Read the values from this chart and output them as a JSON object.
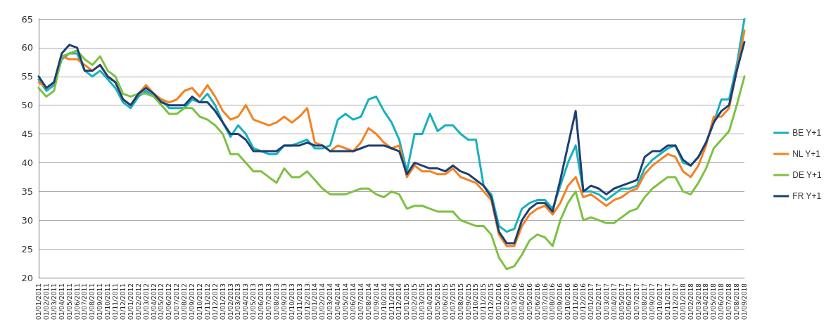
{
  "chart_data": {
    "type": "line",
    "categories": [
      "01/01/2011",
      "01/02/2011",
      "01/03/2011",
      "01/04/2011",
      "01/05/2011",
      "01/06/2011",
      "01/07/2011",
      "01/08/2011",
      "01/09/2011",
      "01/10/2011",
      "01/11/2011",
      "01/12/2011",
      "01/01/2012",
      "01/02/2012",
      "01/03/2012",
      "01/04/2012",
      "01/05/2012",
      "01/06/2012",
      "01/07/2012",
      "01/08/2012",
      "01/09/2012",
      "01/10/2012",
      "01/11/2012",
      "01/12/2012",
      "01/01/2013",
      "01/02/2013",
      "01/03/2013",
      "01/04/2013",
      "01/05/2013",
      "01/06/2013",
      "01/07/2013",
      "01/08/2013",
      "01/09/2013",
      "01/10/2013",
      "01/11/2013",
      "01/12/2013",
      "01/01/2014",
      "01/02/2014",
      "01/03/2014",
      "01/04/2014",
      "01/05/2014",
      "01/06/2014",
      "01/07/2014",
      "01/08/2014",
      "01/09/2014",
      "01/10/2014",
      "01/11/2014",
      "01/12/2014",
      "01/01/2015",
      "01/02/2015",
      "01/03/2015",
      "01/04/2015",
      "01/05/2015",
      "01/06/2015",
      "01/07/2015",
      "01/08/2015",
      "01/09/2015",
      "01/10/2015",
      "01/11/2015",
      "01/12/2015",
      "01/01/2016",
      "01/02/2016",
      "01/03/2016",
      "01/04/2016",
      "01/05/2016",
      "01/06/2016",
      "01/07/2016",
      "01/08/2016",
      "01/09/2016",
      "01/10/2016",
      "01/11/2016",
      "01/12/2016",
      "01/01/2017",
      "01/02/2017",
      "01/03/2017",
      "01/04/2017",
      "01/05/2017",
      "01/06/2017",
      "01/07/2017",
      "01/08/2017",
      "01/09/2017",
      "01/10/2017",
      "01/11/2017",
      "01/12/2017",
      "01/01/2018",
      "01/02/2018",
      "01/03/2018",
      "01/04/2018",
      "01/05/2018",
      "01/06/2018",
      "01/07/2018",
      "01/08/2018",
      "01/09/2018"
    ],
    "series": [
      {
        "name": "BE Y+1",
        "color": "#17b0c0",
        "values": [
          54.5,
          52.5,
          53.5,
          58,
          59,
          59,
          56,
          55,
          56,
          54.5,
          53,
          50.5,
          49.5,
          51.5,
          52.5,
          51.5,
          51,
          49.5,
          49.5,
          49.5,
          51,
          50.5,
          52,
          50,
          47,
          44.5,
          46.5,
          45,
          42.5,
          42,
          41.5,
          41.5,
          43,
          43,
          43.5,
          44,
          42.5,
          42.5,
          43,
          47.5,
          48.5,
          47.5,
          48,
          51,
          51.5,
          49,
          47,
          44,
          38.5,
          45,
          45,
          48.5,
          45.5,
          46.5,
          46.5,
          45,
          44,
          44,
          36,
          34.5,
          29,
          28,
          28.5,
          32,
          33,
          33.5,
          33.5,
          32,
          36,
          40,
          43,
          35,
          35,
          34.5,
          33.5,
          34.5,
          35.5,
          35.5,
          36,
          39,
          40.5,
          41.5,
          42.5,
          43,
          40,
          39.5,
          41,
          43.5,
          47,
          51,
          51,
          57,
          65
        ]
      },
      {
        "name": "NL Y+1",
        "color": "#f58220",
        "values": [
          54,
          53,
          54,
          58.5,
          58,
          58,
          57,
          56,
          57,
          55,
          54,
          51,
          50,
          52,
          53.5,
          52,
          51,
          50.5,
          51,
          52.5,
          53,
          51.5,
          53.5,
          51.5,
          49,
          47.5,
          48,
          50,
          47.5,
          47,
          46.5,
          47,
          48,
          47,
          48,
          49.5,
          43.5,
          43,
          42,
          43,
          42.5,
          42,
          43.5,
          46,
          45,
          43.5,
          42.5,
          43,
          37.5,
          39.5,
          38.5,
          38.5,
          38,
          38,
          39,
          37.5,
          37,
          36.5,
          35,
          33.5,
          27.5,
          25.5,
          25.5,
          29,
          31,
          32,
          32.5,
          31,
          33,
          36,
          37.5,
          34,
          34.5,
          33.5,
          32.5,
          33.5,
          34,
          35,
          35.5,
          38,
          39.5,
          40.5,
          41.5,
          41,
          38.5,
          37.5,
          39.5,
          43,
          48,
          48,
          49.5,
          56,
          63
        ]
      },
      {
        "name": "DE Y+1",
        "color": "#7dc142",
        "values": [
          53,
          51.5,
          52.5,
          58.5,
          59,
          59.5,
          58,
          57,
          58.5,
          56,
          55,
          52,
          51.5,
          52,
          52,
          51.5,
          50,
          48.5,
          48.5,
          49.5,
          49.5,
          48,
          47.5,
          46.5,
          45,
          41.5,
          41.5,
          40,
          38.5,
          38.5,
          37.5,
          36.5,
          39,
          37.5,
          37.5,
          38.5,
          37,
          35.5,
          34.5,
          34.5,
          34.5,
          35,
          35.5,
          35.5,
          34.5,
          34,
          35,
          34.5,
          32,
          32.5,
          32.5,
          32,
          31.5,
          31.5,
          31.5,
          30,
          29.5,
          29,
          29,
          27.5,
          23.5,
          21.5,
          22,
          24,
          26.5,
          27.5,
          27,
          25.5,
          30,
          33,
          35,
          30,
          30.5,
          30,
          29.5,
          29.5,
          30.5,
          31.5,
          32,
          34,
          35.5,
          36.5,
          37.5,
          37.5,
          35,
          34.5,
          36.5,
          39,
          42.5,
          44,
          45.5,
          50,
          55
        ]
      },
      {
        "name": "FR Y+1",
        "color": "#1f3f73",
        "values": [
          55,
          53,
          54,
          59,
          60.5,
          60,
          56,
          56,
          57,
          55,
          54,
          51,
          50,
          52,
          53,
          52,
          50.5,
          50,
          50,
          50,
          51.5,
          50.5,
          50.5,
          49,
          47,
          45,
          45,
          44,
          42,
          42,
          42,
          42,
          43,
          43,
          43,
          43.5,
          43,
          43,
          42,
          42,
          42,
          42,
          42.5,
          43,
          43,
          43,
          42.5,
          42,
          38,
          40,
          39.5,
          39,
          39,
          38.5,
          39.5,
          38.5,
          38,
          37,
          36,
          34,
          28,
          26,
          26,
          30,
          32,
          33,
          33,
          31.5,
          37,
          43,
          49,
          35,
          36,
          35.5,
          34.5,
          35.5,
          36,
          36.5,
          37,
          41,
          42,
          42,
          43,
          43,
          40.5,
          39.5,
          41,
          43.5,
          47,
          49,
          50,
          56,
          61
        ]
      }
    ],
    "ylim": [
      20,
      65
    ],
    "yticks": [
      20,
      25,
      30,
      35,
      40,
      45,
      50,
      55,
      60,
      65
    ],
    "grid": "y",
    "legend": "right"
  }
}
